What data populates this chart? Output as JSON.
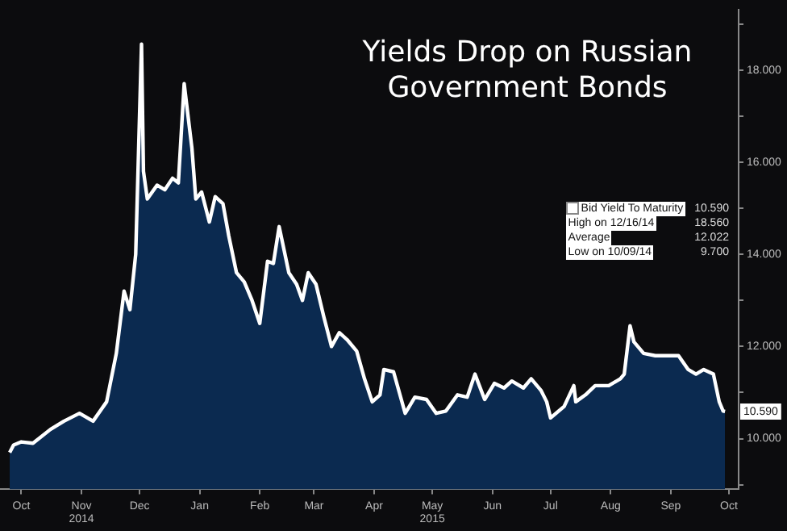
{
  "chart_data": {
    "type": "area",
    "title": "Yields Drop on Russian Government Bonds",
    "x": [
      "2014-10-09",
      "2014-10-11",
      "2014-10-15",
      "2014-10-21",
      "2014-10-30",
      "2014-11-06",
      "2014-11-14",
      "2014-11-21",
      "2014-11-28",
      "2014-12-03",
      "2014-12-07",
      "2014-12-10",
      "2014-12-13",
      "2014-12-16",
      "2014-12-17",
      "2014-12-19",
      "2014-12-24",
      "2014-12-28",
      "2015-01-01",
      "2015-01-04",
      "2015-01-07",
      "2015-01-11",
      "2015-01-13",
      "2015-01-16",
      "2015-01-20",
      "2015-01-23",
      "2015-01-27",
      "2015-01-30",
      "2015-02-03",
      "2015-02-07",
      "2015-02-11",
      "2015-02-15",
      "2015-02-19",
      "2015-02-22",
      "2015-02-25",
      "2015-03-02",
      "2015-03-06",
      "2015-03-09",
      "2015-03-12",
      "2015-03-16",
      "2015-03-20",
      "2015-03-24",
      "2015-03-28",
      "2015-04-01",
      "2015-04-06",
      "2015-04-10",
      "2015-04-14",
      "2015-04-18",
      "2015-04-20",
      "2015-04-25",
      "2015-05-01",
      "2015-05-06",
      "2015-05-12",
      "2015-05-17",
      "2015-05-22",
      "2015-05-28",
      "2015-06-02",
      "2015-06-06",
      "2015-06-11",
      "2015-06-16",
      "2015-06-21",
      "2015-06-25",
      "2015-07-01",
      "2015-07-05",
      "2015-07-10",
      "2015-07-13",
      "2015-07-15",
      "2015-07-22",
      "2015-07-27",
      "2015-07-28",
      "2015-08-02",
      "2015-08-07",
      "2015-08-14",
      "2015-08-20",
      "2015-08-22",
      "2015-08-25",
      "2015-08-27",
      "2015-09-01",
      "2015-09-07",
      "2015-09-13",
      "2015-09-19",
      "2015-09-24",
      "2015-09-28",
      "2015-10-02",
      "2015-10-07",
      "2015-10-10",
      "2015-10-12",
      "2015-10-13"
    ],
    "series": [
      {
        "name": "Bid Yield To Maturity",
        "color": "#ffffff",
        "values": [
          9.7,
          9.86,
          9.93,
          9.9,
          10.2,
          10.38,
          10.55,
          10.38,
          10.8,
          11.85,
          13.2,
          12.8,
          14.0,
          18.56,
          15.8,
          15.2,
          15.5,
          15.4,
          15.65,
          15.55,
          17.7,
          16.3,
          15.2,
          15.35,
          14.7,
          15.25,
          15.1,
          14.4,
          13.6,
          13.4,
          13.0,
          12.5,
          13.85,
          13.8,
          14.6,
          13.6,
          13.35,
          13.0,
          13.6,
          13.35,
          12.65,
          12.0,
          12.3,
          12.15,
          11.9,
          11.3,
          10.8,
          10.95,
          11.5,
          11.45,
          10.55,
          10.9,
          10.85,
          10.55,
          10.6,
          10.95,
          10.9,
          11.4,
          10.85,
          11.2,
          11.1,
          11.25,
          11.1,
          11.3,
          11.05,
          10.8,
          10.45,
          10.7,
          11.15,
          10.8,
          10.95,
          11.15,
          11.15,
          11.3,
          11.4,
          12.45,
          12.1,
          11.85,
          11.8,
          11.8,
          11.8,
          11.5,
          11.4,
          11.5,
          11.4,
          10.8,
          10.6,
          10.59
        ],
        "value_labels": [
          null,
          null,
          null,
          null,
          null,
          null,
          null,
          null,
          null,
          null,
          null,
          null,
          null,
          null,
          null,
          null,
          null,
          null,
          null,
          null,
          null,
          null,
          null,
          null,
          null,
          null,
          null,
          null,
          null,
          null,
          null,
          null,
          null,
          null,
          null,
          null,
          null,
          null,
          null,
          null,
          null,
          null,
          null,
          null,
          null,
          null,
          null,
          null,
          null,
          null,
          null,
          null,
          null,
          null,
          null,
          null,
          null,
          null,
          null,
          null,
          null,
          null,
          null,
          null,
          null,
          null,
          null,
          null,
          null,
          null,
          null,
          null,
          null,
          null,
          null,
          null,
          null,
          null,
          null,
          null,
          null,
          null,
          null,
          null,
          null,
          null,
          null,
          "10.590"
        ]
      }
    ],
    "annotations": [
      "High on 12/16/14 18.560",
      "Average 12.022",
      "Low on 10/09/14 9.700"
    ],
    "xlim": [
      "2014-10-04",
      "2015-10-20"
    ],
    "xticks": [
      {
        "value": "2014-10-15",
        "label": "Oct"
      },
      {
        "value": "2014-11-15",
        "label": "Nov\n2014"
      },
      {
        "value": "2014-12-15",
        "label": "Dec"
      },
      {
        "value": "2015-01-15",
        "label": "Jan"
      },
      {
        "value": "2015-02-15",
        "label": "Feb"
      },
      {
        "value": "2015-03-15",
        "label": "Mar"
      },
      {
        "value": "2015-04-15",
        "label": "Apr"
      },
      {
        "value": "2015-05-15",
        "label": "May\n2015"
      },
      {
        "value": "2015-06-15",
        "label": "Jun"
      },
      {
        "value": "2015-07-15",
        "label": "Jul"
      },
      {
        "value": "2015-08-15",
        "label": "Aug"
      },
      {
        "value": "2015-09-15",
        "label": "Sep"
      },
      {
        "value": "2015-10-15",
        "label": "Oct"
      }
    ],
    "ylim": [
      8.9,
      19.3
    ],
    "yticks": [
      {
        "value": 9,
        "label": null
      },
      {
        "value": 10,
        "label": "10.000"
      },
      {
        "value": 11,
        "label": null
      },
      {
        "value": 12,
        "label": "12.000"
      },
      {
        "value": 13,
        "label": null
      },
      {
        "value": 14,
        "label": "14.000"
      },
      {
        "value": 15,
        "label": null
      },
      {
        "value": 16,
        "label": "16.000"
      },
      {
        "value": 17,
        "label": null
      },
      {
        "value": 18,
        "label": "18.000"
      },
      {
        "value": 19,
        "label": null
      }
    ],
    "legend": "right",
    "marker": "none",
    "line_style": "solid",
    "grid": false
  }
}
